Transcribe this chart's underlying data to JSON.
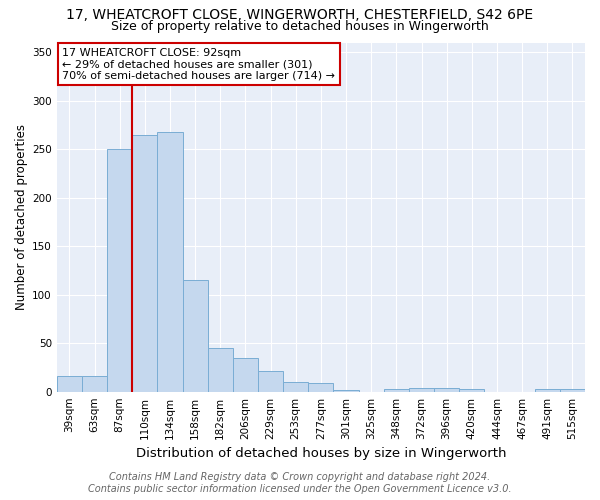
{
  "title1": "17, WHEATCROFT CLOSE, WINGERWORTH, CHESTERFIELD, S42 6PE",
  "title2": "Size of property relative to detached houses in Wingerworth",
  "xlabel": "Distribution of detached houses by size in Wingerworth",
  "ylabel": "Number of detached properties",
  "categories": [
    "39sqm",
    "63sqm",
    "87sqm",
    "110sqm",
    "134sqm",
    "158sqm",
    "182sqm",
    "206sqm",
    "229sqm",
    "253sqm",
    "277sqm",
    "301sqm",
    "325sqm",
    "348sqm",
    "372sqm",
    "396sqm",
    "420sqm",
    "444sqm",
    "467sqm",
    "491sqm",
    "515sqm"
  ],
  "values": [
    16,
    16,
    250,
    265,
    268,
    115,
    45,
    35,
    21,
    10,
    9,
    2,
    0,
    3,
    4,
    4,
    3,
    0,
    0,
    3,
    3
  ],
  "bar_color": "#c5d8ee",
  "bar_edge_color": "#7aadd4",
  "red_line_x": 2.5,
  "annotation_text": "17 WHEATCROFT CLOSE: 92sqm\n← 29% of detached houses are smaller (301)\n70% of semi-detached houses are larger (714) →",
  "annotation_box_color": "#ffffff",
  "annotation_box_edge": "#cc0000",
  "vline_color": "#cc0000",
  "ylim": [
    0,
    360
  ],
  "yticks": [
    0,
    50,
    100,
    150,
    200,
    250,
    300,
    350
  ],
  "fig_bg_color": "#ffffff",
  "plot_bg_color": "#e8eef8",
  "grid_color": "#ffffff",
  "title1_fontsize": 10,
  "title2_fontsize": 9,
  "xlabel_fontsize": 9.5,
  "ylabel_fontsize": 8.5,
  "tick_fontsize": 7.5,
  "annotation_fontsize": 8,
  "footer_fontsize": 7
}
